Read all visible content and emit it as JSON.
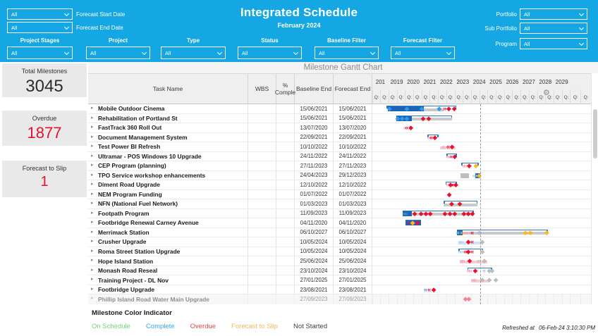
{
  "colors": {
    "accent_blue": "#14a7e3",
    "overdue_red": "#e8112d",
    "complete_blue": "#2d9ce8",
    "slip_amber": "#ffb915",
    "not_started_gray": "#bdbdbd",
    "bar_blue": "#1e63b5"
  },
  "header": {
    "title": "Integrated Schedule",
    "subtitle": "February 2024",
    "left_filters": [
      {
        "label": "Forecast Start Date",
        "value": "All"
      },
      {
        "label": "Forecast End Date",
        "value": "All"
      }
    ],
    "right_filters": [
      {
        "label": "Portfolio",
        "value": "All"
      },
      {
        "label": "Sub Portfolio",
        "value": "All"
      },
      {
        "label": "Program",
        "value": "All"
      }
    ],
    "filter_row": [
      {
        "label": "Project Stages",
        "value": "All"
      },
      {
        "label": "Project",
        "value": "All"
      },
      {
        "label": "Type",
        "value": "All"
      },
      {
        "label": "Status",
        "value": "All"
      },
      {
        "label": "Baseline Filter",
        "value": "All"
      },
      {
        "label": "Forecast Filter",
        "value": "All"
      }
    ]
  },
  "kpis": [
    {
      "label": "Total Milestones",
      "value": "3045",
      "color": "#2b2b2b"
    },
    {
      "label": "Overdue",
      "value": "1877",
      "color": "#e8112d"
    },
    {
      "label": "Forecast to Slip",
      "value": "1",
      "color": "#e8112d"
    }
  ],
  "gantt": {
    "panel_title": "Milestone Gantt Chart",
    "columns": [
      "Task Name",
      "WBS",
      "% Comple",
      "Baseline End",
      "Forecast End"
    ],
    "years": [
      "201",
      "2019",
      "2020",
      "2021",
      "2022",
      "2023",
      "2024",
      "2025",
      "2026",
      "2027",
      "2028",
      "2029",
      ""
    ],
    "quarter_label": "Q:",
    "today_pos": 49.5,
    "rows": [
      {
        "name": "Mobile Outdoor Cinema",
        "baseline_end": "15/06/2021",
        "forecast_end": "15/06/2021",
        "marks": [
          {
            "t": "base",
            "x": 6.5,
            "w": 32.0
          },
          {
            "t": "seg",
            "x": 7.0,
            "w": 16.5,
            "c": "#1e63b5"
          },
          {
            "t": "track",
            "x": 23.5,
            "w": 9.0
          },
          {
            "t": "d",
            "x": 7.8,
            "c": "#2d9ce8"
          },
          {
            "t": "d",
            "x": 15.8,
            "c": "#2d9ce8"
          },
          {
            "t": "d",
            "x": 22.6,
            "c": "#2d9ce8"
          },
          {
            "t": "d",
            "x": 30.6,
            "c": "#2d9ce8"
          },
          {
            "t": "ch",
            "x": 33.0,
            "c": "#e8112d",
            "g": "»"
          },
          {
            "t": "d",
            "x": 35.0,
            "c": "#e8112d"
          },
          {
            "t": "d",
            "x": 37.5,
            "c": "#e8112d"
          }
        ]
      },
      {
        "name": "Rehabilitation of Portland St",
        "baseline_end": "15/06/2021",
        "forecast_end": "15/06/2021",
        "marks": [
          {
            "t": "base",
            "x": 11.0,
            "w": 25.5
          },
          {
            "t": "seg",
            "x": 11.0,
            "w": 7.0,
            "c": "#1e63b5"
          },
          {
            "t": "track",
            "x": 18.0,
            "w": 18.5
          },
          {
            "t": "d",
            "x": 11.6,
            "c": "#2d9ce8"
          },
          {
            "t": "d",
            "x": 13.6,
            "c": "#2d9ce8"
          },
          {
            "t": "d",
            "x": 15.8,
            "c": "#2d9ce8"
          },
          {
            "t": "d",
            "x": 23.2,
            "c": "#e8112d"
          },
          {
            "t": "d",
            "x": 25.8,
            "c": "#e8112d"
          }
        ]
      },
      {
        "name": "FastTrack 360 Roll Out",
        "baseline_end": "13/07/2020",
        "forecast_end": "13/07/2020",
        "marks": [
          {
            "t": "ch",
            "x": 14.8,
            "c": "#f5a3ad"
          },
          {
            "t": "ch",
            "x": 15.6,
            "c": "#e8112d"
          },
          {
            "t": "d",
            "x": 17.6,
            "c": "#e8112d"
          }
        ]
      },
      {
        "name": "Document Management System",
        "baseline_end": "22/09/2021",
        "forecast_end": "22/09/2021",
        "marks": [
          {
            "t": "base",
            "x": 25.3,
            "w": 5.0
          },
          {
            "t": "ch",
            "x": 25.8,
            "c": "#f5a3ad"
          },
          {
            "t": "ch",
            "x": 26.8,
            "c": "#e8112d"
          },
          {
            "t": "d",
            "x": 28.6,
            "c": "#e8112d"
          }
        ]
      },
      {
        "name": "Test Power BI Refresh",
        "baseline_end": "10/10/2022",
        "forecast_end": "10/10/2022",
        "marks": [
          {
            "t": "track",
            "x": 31.0,
            "w": 7.0,
            "c": "#f3cdd2"
          },
          {
            "t": "ch",
            "x": 32.3,
            "c": "#f5a3ad"
          },
          {
            "t": "ch",
            "x": 34.5,
            "c": "#e8112d"
          },
          {
            "t": "d",
            "x": 36.5,
            "c": "#e8112d"
          }
        ]
      },
      {
        "name": "Ultramar - POS Windows 10 Upgrade",
        "baseline_end": "24/11/2022",
        "forecast_end": "24/11/2022",
        "marks": [
          {
            "t": "base",
            "x": 33.9,
            "w": 4.8
          },
          {
            "t": "ch",
            "x": 34.3,
            "c": "#f5a3ad"
          },
          {
            "t": "ch",
            "x": 35.8,
            "c": "#e8112d"
          },
          {
            "t": "d",
            "x": 37.7,
            "c": "#e8112d"
          }
        ]
      },
      {
        "name": "CEP Program (planning)",
        "baseline_end": "27/11/2023",
        "forecast_end": "27/11/2023",
        "marks": [
          {
            "t": "base",
            "x": 40.8,
            "w": 7.8
          },
          {
            "t": "ch",
            "x": 41.5,
            "c": "#f5a3ad"
          },
          {
            "t": "ch",
            "x": 42.5,
            "c": "#f5a3ad"
          },
          {
            "t": "d",
            "x": 44.3,
            "c": "#e8112d"
          },
          {
            "t": "d",
            "x": 47.4,
            "c": "#ffb915"
          }
        ]
      },
      {
        "name": "TPO Service workshop enhancements",
        "baseline_end": "24/04/2023",
        "forecast_end": "29/12/2023",
        "marks": [
          {
            "t": "seg",
            "x": 40.3,
            "w": 3.9,
            "c": "#bfbfbf"
          },
          {
            "t": "seg",
            "x": 47.2,
            "w": 2.0,
            "c": "#1e63b5"
          },
          {
            "t": "ch",
            "x": 46.3,
            "c": "#a9d3f0"
          },
          {
            "t": "ch",
            "x": 47.2,
            "c": "#a9d3f0"
          },
          {
            "t": "d",
            "x": 48.9,
            "c": "#ffb915"
          }
        ]
      },
      {
        "name": "Diment Road Upgrade",
        "baseline_end": "12/10/2022",
        "forecast_end": "12/10/2022",
        "marks": [
          {
            "t": "base",
            "x": 33.5,
            "w": 5.2
          },
          {
            "t": "ch",
            "x": 34.3,
            "c": "#f5a3ad"
          },
          {
            "t": "d",
            "x": 35.8,
            "c": "#e8112d"
          },
          {
            "t": "ch",
            "x": 37.0,
            "c": "#e8112d",
            "g": "»"
          },
          {
            "t": "d",
            "x": 38.2,
            "c": "#e8112d"
          }
        ]
      },
      {
        "name": "NEM Program Funding",
        "baseline_end": "01/07/2022",
        "forecast_end": "01/07/2022",
        "marks": [
          {
            "t": "d",
            "x": 35.2,
            "c": "#e8112d"
          }
        ]
      },
      {
        "name": "NFN (National Fuel Network)",
        "baseline_end": "01/03/2023",
        "forecast_end": "01/03/2023",
        "marks": [
          {
            "t": "base",
            "x": 32.6,
            "w": 15.5
          },
          {
            "t": "track",
            "x": 32.6,
            "w": 15.5
          },
          {
            "t": "d",
            "x": 36.3,
            "c": "#e8112d"
          },
          {
            "t": "d",
            "x": 40.0,
            "c": "#e8112d"
          }
        ]
      },
      {
        "name": "Footpath Program",
        "baseline_end": "11/09/2023",
        "forecast_end": "11/09/2023",
        "marks": [
          {
            "t": "base",
            "x": 13.9,
            "w": 32.5
          },
          {
            "t": "seg",
            "x": 13.9,
            "w": 4.3,
            "c": "#1e63b5"
          },
          {
            "t": "track",
            "x": 18.2,
            "w": 28.2
          },
          {
            "t": "ch",
            "x": 14.4,
            "c": "#2d9ce8"
          },
          {
            "t": "ch",
            "x": 15.4,
            "c": "#2d9ce8"
          },
          {
            "t": "d",
            "x": 19.4,
            "c": "#e8112d"
          },
          {
            "t": "d",
            "x": 22.3,
            "c": "#e8112d"
          },
          {
            "t": "d",
            "x": 24.5,
            "c": "#e8112d"
          },
          {
            "t": "d",
            "x": 26.5,
            "c": "#e8112d"
          },
          {
            "t": "d",
            "x": 33.2,
            "c": "#e8112d"
          },
          {
            "t": "d",
            "x": 35.5,
            "c": "#e8112d"
          },
          {
            "t": "d",
            "x": 37.7,
            "c": "#e8112d"
          },
          {
            "t": "d",
            "x": 41.9,
            "c": "#e8112d"
          },
          {
            "t": "d",
            "x": 43.9,
            "c": "#e8112d"
          },
          {
            "t": "d",
            "x": 45.8,
            "c": "#e8112d"
          }
        ]
      },
      {
        "name": "Footbridge Renewal Carney Avenue",
        "baseline_end": "04/11/2020",
        "forecast_end": "04/11/2020",
        "marks": [
          {
            "t": "base",
            "x": 15.2,
            "w": 7.2
          },
          {
            "t": "seg",
            "x": 15.2,
            "w": 7.2,
            "c": "#1e63b5"
          },
          {
            "t": "ch",
            "x": 16.5,
            "c": "#e8112d"
          },
          {
            "t": "d",
            "x": 18.4,
            "c": "#ffb915"
          },
          {
            "t": "d",
            "x": 20.6,
            "c": "#e8112d"
          }
        ]
      },
      {
        "name": "Merrimack Station",
        "baseline_end": "06/10/2027",
        "forecast_end": "06/10/2027",
        "marks": [
          {
            "t": "base",
            "x": 38.7,
            "w": 41.6
          },
          {
            "t": "track",
            "x": 38.7,
            "w": 41.6
          },
          {
            "t": "seg",
            "x": 38.7,
            "w": 2.6,
            "c": "#1e63b5"
          },
          {
            "t": "ch",
            "x": 38.8,
            "c": "#a9d3f0"
          },
          {
            "t": "ch",
            "x": 39.8,
            "c": "#2d9ce8"
          },
          {
            "t": "ch",
            "x": 41.0,
            "c": "#ffb915"
          },
          {
            "t": "ch",
            "x": 42.1,
            "c": "#f5a3ad"
          },
          {
            "t": "ch",
            "x": 43.1,
            "c": "#f5a3ad"
          },
          {
            "t": "ch",
            "x": 45.5,
            "c": "#e8112d"
          },
          {
            "t": "d",
            "x": 49.0,
            "c": "#bdbdbd"
          },
          {
            "t": "d",
            "x": 70.0,
            "c": "#ffb915"
          },
          {
            "t": "d",
            "x": 72.3,
            "c": "#ffb915"
          },
          {
            "t": "d",
            "x": 79.8,
            "c": "#ffb915"
          }
        ]
      },
      {
        "name": "Crusher Upgrade",
        "baseline_end": "10/05/2024",
        "forecast_end": "10/05/2024",
        "marks": [
          {
            "t": "track",
            "x": 39.4,
            "w": 11.3,
            "c": "#cfe3f5"
          },
          {
            "t": "ch",
            "x": 39.8,
            "c": "#a9d3f0"
          },
          {
            "t": "ch",
            "x": 40.8,
            "c": "#a9d3f0"
          },
          {
            "t": "d",
            "x": 43.9,
            "c": "#e8112d"
          },
          {
            "t": "ch",
            "x": 45.5,
            "c": "#e8112d"
          },
          {
            "t": "d",
            "x": 50.3,
            "c": "#bdbdbd"
          }
        ]
      },
      {
        "name": "Roma Street Station Upgrade",
        "baseline_end": "10/05/2024",
        "forecast_end": "10/05/2024",
        "marks": [
          {
            "t": "base",
            "x": 39.4,
            "w": 11.3
          },
          {
            "t": "ch",
            "x": 39.8,
            "c": "#a9d3f0"
          },
          {
            "t": "ch",
            "x": 40.8,
            "c": "#a9d3f0"
          },
          {
            "t": "ch",
            "x": 42.3,
            "c": "#e8112d"
          },
          {
            "t": "d",
            "x": 43.9,
            "c": "#e8112d"
          },
          {
            "t": "ch",
            "x": 45.5,
            "c": "#e8112d"
          },
          {
            "t": "d",
            "x": 50.3,
            "c": "#bdbdbd"
          }
        ]
      },
      {
        "name": "Hope Island Station",
        "baseline_end": "25/06/2024",
        "forecast_end": "25/06/2024",
        "marks": [
          {
            "t": "track",
            "x": 40.0,
            "w": 12.5,
            "c": "#f3cdd2"
          },
          {
            "t": "ch",
            "x": 40.5,
            "c": "#f5a3ad"
          },
          {
            "t": "ch",
            "x": 41.5,
            "c": "#f5a3ad"
          },
          {
            "t": "d",
            "x": 44.5,
            "c": "#e8112d"
          },
          {
            "t": "ch",
            "x": 48.4,
            "c": "#bdbdbd"
          },
          {
            "t": "d",
            "x": 51.3,
            "c": "#bdbdbd"
          }
        ]
      },
      {
        "name": "Monash Road Reseal",
        "baseline_end": "23/10/2024",
        "forecast_end": "23/10/2024",
        "marks": [
          {
            "t": "base",
            "x": 43.5,
            "w": 11.3
          },
          {
            "t": "ch",
            "x": 43.8,
            "c": "#f5a3ad"
          },
          {
            "t": "ch",
            "x": 44.8,
            "c": "#f5a3ad"
          },
          {
            "t": "d",
            "x": 47.1,
            "c": "#e8112d"
          },
          {
            "t": "ch",
            "x": 51.0,
            "c": "#bdbdbd"
          },
          {
            "t": "d",
            "x": 53.5,
            "c": "#bdbdbd"
          },
          {
            "t": "d",
            "x": 54.8,
            "c": "#bdbdbd"
          }
        ]
      },
      {
        "name": "Training Project - DL Nov",
        "baseline_end": "27/01/2025",
        "forecast_end": "27/01/2025",
        "marks": [
          {
            "t": "track",
            "x": 45.2,
            "w": 8.0,
            "c": "#f3cdd2"
          },
          {
            "t": "ch",
            "x": 45.8,
            "c": "#f5a3ad"
          },
          {
            "t": "ch",
            "x": 46.8,
            "c": "#f5a3ad"
          },
          {
            "t": "d",
            "x": 50.3,
            "c": "#bdbdbd"
          },
          {
            "t": "d",
            "x": 53.5,
            "c": "#bdbdbd"
          },
          {
            "t": "d",
            "x": 56.5,
            "c": "#bdbdbd"
          }
        ]
      },
      {
        "name": "Footbridge Upgrade",
        "baseline_end": "23/08/2021",
        "forecast_end": "23/08/2021",
        "marks": [
          {
            "t": "ch",
            "x": 24.2,
            "c": "#2d9ce8"
          },
          {
            "t": "ch",
            "x": 25.8,
            "c": "#e8112d"
          },
          {
            "t": "d",
            "x": 28.1,
            "c": "#e8112d"
          }
        ]
      },
      {
        "name": "Phillip Island Road Water Main Upgrade",
        "baseline_end": "27/09/2023",
        "forecast_end": "27/09/2023",
        "dim": true,
        "marks": [
          {
            "t": "d",
            "x": 42.6,
            "c": "#e8112d"
          },
          {
            "t": "d",
            "x": 44.2,
            "c": "#e8112d"
          }
        ]
      }
    ]
  },
  "footer": {
    "legend_title": "Milestone Color Indicator",
    "legend": [
      {
        "label": "On Schedule",
        "color": "#70d573"
      },
      {
        "label": "Complete",
        "color": "#33a5f2"
      },
      {
        "label": "Overdue",
        "color": "#e5484d"
      },
      {
        "label": "Forecast to Slip",
        "color": "#f2b950"
      },
      {
        "label": "Not Started",
        "color": "#3f3f3f"
      }
    ],
    "refreshed_label": "Refreshed at",
    "refreshed_value": "06-Feb-24 3:10:30 PM"
  }
}
